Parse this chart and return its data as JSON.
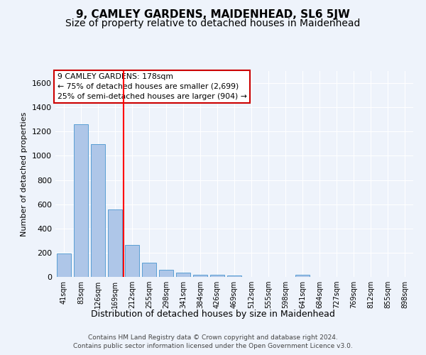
{
  "title": "9, CAMLEY GARDENS, MAIDENHEAD, SL6 5JW",
  "subtitle": "Size of property relative to detached houses in Maidenhead",
  "xlabel": "Distribution of detached houses by size in Maidenhead",
  "ylabel": "Number of detached properties",
  "categories": [
    "41sqm",
    "83sqm",
    "126sqm",
    "169sqm",
    "212sqm",
    "255sqm",
    "298sqm",
    "341sqm",
    "384sqm",
    "426sqm",
    "469sqm",
    "512sqm",
    "555sqm",
    "598sqm",
    "641sqm",
    "684sqm",
    "727sqm",
    "769sqm",
    "812sqm",
    "855sqm",
    "898sqm"
  ],
  "values": [
    193,
    1263,
    1094,
    558,
    265,
    120,
    60,
    35,
    20,
    15,
    10,
    0,
    0,
    0,
    20,
    0,
    0,
    0,
    0,
    0,
    0
  ],
  "bar_color": "#aec6e8",
  "bar_edge_color": "#5a9fd4",
  "red_line_after_bar": 3,
  "annotation_title": "9 CAMLEY GARDENS: 178sqm",
  "annotation_line1": "← 75% of detached houses are smaller (2,699)",
  "annotation_line2": "25% of semi-detached houses are larger (904) →",
  "ylim": [
    0,
    1700
  ],
  "yticks": [
    0,
    200,
    400,
    600,
    800,
    1000,
    1200,
    1400,
    1600
  ],
  "footer1": "Contains HM Land Registry data © Crown copyright and database right 2024.",
  "footer2": "Contains public sector information licensed under the Open Government Licence v3.0.",
  "background_color": "#eef3fb",
  "grid_color": "#ffffff",
  "title_fontsize": 11,
  "subtitle_fontsize": 10,
  "annotation_box_color": "#ffffff",
  "annotation_box_edge": "#cc0000"
}
